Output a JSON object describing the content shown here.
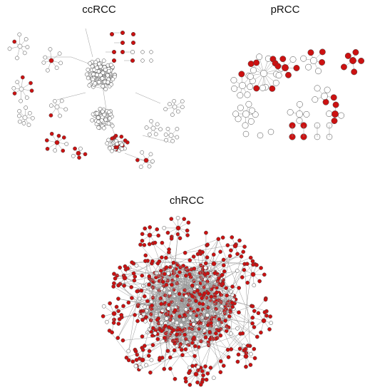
{
  "colors": {
    "highlight_node": "#cc1111",
    "plain_node_fill": "#ffffff",
    "node_stroke": "#444444",
    "edge": "#9a9a9a"
  },
  "panels": [
    {
      "id": "ccrcc",
      "title": "ccRCC"
    },
    {
      "id": "prcc",
      "title": "pRCC"
    },
    {
      "id": "chrcc",
      "title": "chRCC"
    }
  ]
}
